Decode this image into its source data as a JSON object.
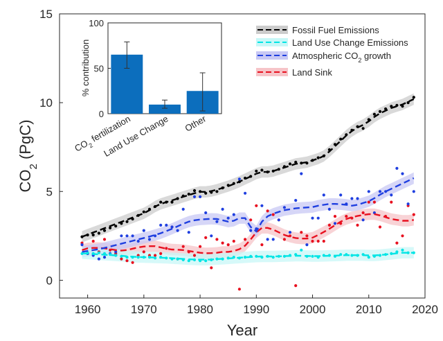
{
  "chart_data": [
    {
      "type": "scatter",
      "xlabel": "Year",
      "ylabel": "CO2 (PgC)",
      "xlim": [
        1955,
        2020
      ],
      "ylim": [
        -1,
        15
      ],
      "xticks": [
        1960,
        1970,
        1980,
        1990,
        2000,
        2010,
        2020
      ],
      "yticks": [
        0,
        5,
        10,
        15
      ],
      "legend_position": "top-right",
      "series": [
        {
          "name": "Fossil Fuel Emissions",
          "color": "#000000",
          "band_color": "#cccccc",
          "x": [
            1959,
            1960,
            1961,
            1962,
            1963,
            1964,
            1965,
            1966,
            1967,
            1968,
            1969,
            1970,
            1971,
            1972,
            1973,
            1974,
            1975,
            1976,
            1977,
            1978,
            1979,
            1980,
            1981,
            1982,
            1983,
            1984,
            1985,
            1986,
            1987,
            1988,
            1989,
            1990,
            1991,
            1992,
            1993,
            1994,
            1995,
            1996,
            1997,
            1998,
            1999,
            2000,
            2001,
            2002,
            2003,
            2004,
            2005,
            2006,
            2007,
            2008,
            2009,
            2010,
            2011,
            2012,
            2013,
            2014,
            2015,
            2016,
            2017,
            2018
          ],
          "values": [
            2.45,
            2.55,
            2.55,
            2.65,
            2.8,
            2.95,
            3.05,
            3.2,
            3.3,
            3.45,
            3.65,
            3.85,
            4.0,
            4.15,
            4.4,
            4.4,
            4.4,
            4.6,
            4.75,
            4.85,
            5.05,
            5.0,
            4.9,
            4.95,
            5.0,
            5.2,
            5.35,
            5.45,
            5.55,
            5.75,
            5.85,
            6.15,
            6.2,
            6.1,
            6.15,
            6.25,
            6.4,
            6.55,
            6.65,
            6.6,
            6.6,
            6.75,
            6.9,
            7.0,
            7.35,
            7.65,
            7.95,
            8.2,
            8.45,
            8.65,
            8.55,
            9.05,
            9.35,
            9.5,
            9.65,
            9.8,
            9.85,
            9.8,
            10.0,
            10.3
          ],
          "trend": [
            2.45,
            2.57,
            2.69,
            2.81,
            2.93,
            3.05,
            3.17,
            3.29,
            3.41,
            3.53,
            3.65,
            3.77,
            3.95,
            4.15,
            4.3,
            4.4,
            4.5,
            4.6,
            4.7,
            4.8,
            4.9,
            4.98,
            4.98,
            5.02,
            5.1,
            5.2,
            5.3,
            5.42,
            5.55,
            5.7,
            5.85,
            6.0,
            6.1,
            6.1,
            6.15,
            6.25,
            6.35,
            6.45,
            6.55,
            6.6,
            6.65,
            6.75,
            6.85,
            7.0,
            7.25,
            7.55,
            7.85,
            8.15,
            8.4,
            8.6,
            8.75,
            8.95,
            9.2,
            9.4,
            9.55,
            9.7,
            9.8,
            9.9,
            10.05,
            10.2
          ]
        },
        {
          "name": "Land Use Change Emissions",
          "color": "#00e5e5",
          "band_color": "#c8f7f7",
          "x": [
            1959,
            1960,
            1961,
            1962,
            1963,
            1964,
            1965,
            1966,
            1967,
            1968,
            1969,
            1970,
            1971,
            1972,
            1973,
            1974,
            1975,
            1976,
            1977,
            1978,
            1979,
            1980,
            1981,
            1982,
            1983,
            1984,
            1985,
            1986,
            1987,
            1988,
            1989,
            1990,
            1991,
            1992,
            1993,
            1994,
            1995,
            1996,
            1997,
            1998,
            1999,
            2000,
            2001,
            2002,
            2003,
            2004,
            2005,
            2006,
            2007,
            2008,
            2009,
            2010,
            2011,
            2012,
            2013,
            2014,
            2015,
            2016,
            2017,
            2018
          ],
          "values": [
            1.5,
            1.55,
            1.5,
            1.55,
            1.5,
            1.45,
            1.4,
            1.35,
            1.3,
            1.3,
            1.3,
            1.3,
            1.3,
            1.25,
            1.3,
            1.25,
            1.2,
            1.2,
            1.15,
            1.1,
            1.15,
            1.1,
            1.1,
            1.15,
            1.2,
            1.2,
            1.25,
            1.3,
            1.25,
            1.3,
            1.35,
            1.35,
            1.3,
            1.35,
            1.3,
            1.35,
            1.35,
            1.4,
            1.45,
            1.7,
            1.35,
            1.35,
            1.3,
            1.4,
            1.4,
            1.35,
            1.45,
            1.45,
            1.4,
            1.4,
            1.45,
            1.3,
            1.35,
            1.4,
            1.45,
            1.5,
            1.6,
            1.7,
            1.55,
            1.55
          ],
          "trend": [
            1.52,
            1.5,
            1.48,
            1.46,
            1.44,
            1.42,
            1.4,
            1.38,
            1.35,
            1.33,
            1.31,
            1.3,
            1.29,
            1.28,
            1.27,
            1.26,
            1.24,
            1.22,
            1.2,
            1.18,
            1.17,
            1.16,
            1.16,
            1.17,
            1.19,
            1.21,
            1.23,
            1.25,
            1.27,
            1.29,
            1.31,
            1.33,
            1.34,
            1.34,
            1.34,
            1.35,
            1.36,
            1.37,
            1.38,
            1.38,
            1.37,
            1.36,
            1.36,
            1.37,
            1.38,
            1.39,
            1.4,
            1.41,
            1.41,
            1.41,
            1.41,
            1.4,
            1.4,
            1.42,
            1.45,
            1.48,
            1.52,
            1.55,
            1.55,
            1.55
          ]
        },
        {
          "name": "Atmospheric CO2 growth",
          "color": "#1f3fe0",
          "band_color": "#c8c8f4",
          "x": [
            1959,
            1960,
            1961,
            1962,
            1963,
            1964,
            1965,
            1966,
            1967,
            1968,
            1969,
            1970,
            1971,
            1972,
            1973,
            1974,
            1975,
            1976,
            1977,
            1978,
            1979,
            1980,
            1981,
            1982,
            1983,
            1984,
            1985,
            1986,
            1987,
            1988,
            1989,
            1990,
            1991,
            1992,
            1993,
            1994,
            1995,
            1996,
            1997,
            1998,
            1999,
            2000,
            2001,
            2002,
            2003,
            2004,
            2005,
            2006,
            2007,
            2008,
            2009,
            2010,
            2011,
            2012,
            2013,
            2014,
            2015,
            2016,
            2017,
            2018
          ],
          "values": [
            2.0,
            1.5,
            1.4,
            1.2,
            1.3,
            1.5,
            1.6,
            2.5,
            2.5,
            2.5,
            2.2,
            2.8,
            2.3,
            2.5,
            3.1,
            3.1,
            3.0,
            2.8,
            4.0,
            2.7,
            4.7,
            4.7,
            3.8,
            2.5,
            3.3,
            4.0,
            3.5,
            3.7,
            5.7,
            4.9,
            2.8,
            2.9,
            4.2,
            2.3,
            2.3,
            3.4,
            4.1,
            2.7,
            4.5,
            6.0,
            2.0,
            3.5,
            3.5,
            4.8,
            4.0,
            3.2,
            4.8,
            4.3,
            4.6,
            4.6,
            3.4,
            5.0,
            3.8,
            5.0,
            5.0,
            4.8,
            6.3,
            6.0,
            4.3,
            5.0
          ],
          "trend": [
            1.6,
            1.65,
            1.7,
            1.75,
            1.82,
            1.9,
            1.98,
            2.06,
            2.14,
            2.22,
            2.3,
            2.38,
            2.46,
            2.55,
            2.65,
            2.77,
            2.9,
            3.04,
            3.18,
            3.3,
            3.38,
            3.42,
            3.44,
            3.46,
            3.45,
            3.38,
            3.3,
            3.35,
            3.5,
            3.5,
            3.0,
            2.75,
            3.3,
            3.6,
            3.75,
            3.85,
            3.95,
            4.0,
            4.05,
            4.08,
            4.1,
            4.12,
            4.2,
            4.25,
            4.3,
            4.3,
            4.28,
            4.25,
            4.2,
            4.25,
            4.35,
            4.45,
            4.62,
            4.82,
            5.0,
            5.15,
            5.3,
            5.45,
            5.6,
            5.75
          ]
        },
        {
          "name": "Land Sink",
          "color": "#e8101f",
          "band_color": "#f6c4c8",
          "x": [
            1959,
            1960,
            1961,
            1962,
            1963,
            1964,
            1965,
            1966,
            1967,
            1968,
            1969,
            1970,
            1971,
            1972,
            1973,
            1974,
            1975,
            1976,
            1977,
            1978,
            1979,
            1980,
            1981,
            1982,
            1983,
            1984,
            1985,
            1986,
            1987,
            1988,
            1989,
            1990,
            1991,
            1992,
            1993,
            1994,
            1995,
            1996,
            1997,
            1998,
            1999,
            2000,
            2001,
            2002,
            2003,
            2004,
            2005,
            2006,
            2007,
            2008,
            2009,
            2010,
            2011,
            2012,
            2013,
            2014,
            2015,
            2016,
            2017,
            2018
          ],
          "values": [
            2.1,
            1.5,
            2.2,
            1.6,
            2.3,
            1.7,
            1.5,
            1.2,
            1.1,
            1.0,
            1.4,
            1.6,
            1.4,
            1.4,
            1.5,
            1.8,
            3.0,
            1.2,
            1.9,
            1.6,
            1.4,
            1.9,
            2.4,
            0.7,
            2.3,
            2.1,
            2.0,
            2.2,
            -0.5,
            2.3,
            3.4,
            4.2,
            2.0,
            3.9,
            3.7,
            3.4,
            2.3,
            2.5,
            -0.3,
            2.7,
            2.5,
            2.2,
            2.2,
            2.2,
            3.1,
            3.6,
            3.2,
            3.6,
            3.5,
            3.1,
            3.8,
            4.4,
            4.4,
            3.0,
            3.6,
            4.4,
            2.1,
            2.5,
            4.2,
            3.7
          ],
          "trend": [
            1.7,
            1.8,
            1.82,
            1.82,
            1.8,
            1.75,
            1.7,
            1.67,
            1.7,
            1.78,
            1.85,
            1.9,
            1.92,
            1.92,
            1.85,
            1.78,
            1.73,
            1.72,
            1.7,
            1.65,
            1.6,
            1.55,
            1.52,
            1.53,
            1.55,
            1.6,
            1.6,
            1.65,
            1.75,
            1.95,
            2.3,
            2.7,
            2.95,
            2.95,
            2.85,
            2.7,
            2.55,
            2.45,
            2.38,
            2.35,
            2.35,
            2.4,
            2.55,
            2.72,
            2.9,
            3.1,
            3.3,
            3.45,
            3.55,
            3.62,
            3.68,
            3.72,
            3.72,
            3.65,
            3.55,
            3.45,
            3.4,
            3.35,
            3.35,
            3.4
          ]
        }
      ]
    },
    {
      "type": "bar",
      "ylabel": "% contribution",
      "ylim": [
        0,
        100
      ],
      "yticks": [
        0,
        50,
        100
      ],
      "categories": [
        "CO2 fertilization",
        "Land Use Change",
        "Other"
      ],
      "values": [
        65,
        10,
        25
      ],
      "error_low": [
        50,
        6,
        3
      ],
      "error_high": [
        79,
        15,
        45
      ],
      "color": "#0c6ebd"
    }
  ]
}
